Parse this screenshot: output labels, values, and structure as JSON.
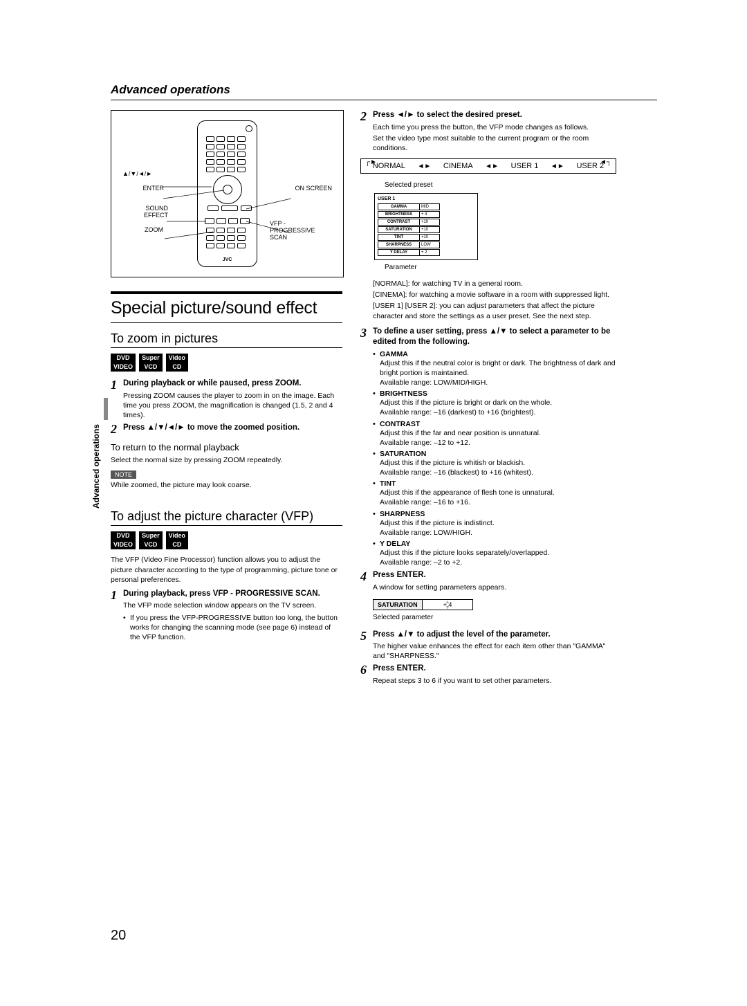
{
  "header": {
    "section_title": "Advanced operations"
  },
  "vtab": {
    "label": "Advanced operations"
  },
  "remote_labels": {
    "nav": "▲/▼/◄/►",
    "enter": "ENTER",
    "sound_effect": "SOUND EFFECT",
    "zoom": "ZOOM",
    "on_screen": "ON SCREEN",
    "vfp": "VFP - PROGRESSIVE SCAN",
    "brand": "JVC"
  },
  "left": {
    "h1": "Special picture/sound effect",
    "zoom_h2": "To zoom in pictures",
    "badges_row1": [
      "DVD",
      "Super",
      "Video"
    ],
    "badges_row2": [
      "VIDEO",
      "VCD",
      "CD"
    ],
    "zoom_step1_head": "During playback or while paused, press ZOOM.",
    "zoom_step1_text": "Pressing ZOOM causes the player to zoom in on the image. Each time you press ZOOM, the magnification is changed (1.5, 2 and 4 times).",
    "zoom_step2_head": "Press ▲/▼/◄/► to move the zoomed position.",
    "return_h3": "To return to the normal playback",
    "return_text": "Select the normal size by pressing ZOOM repeatedly.",
    "note_label": "NOTE",
    "note_text": "While zoomed, the picture may look coarse.",
    "vfp_h2": "To adjust the picture character (VFP)",
    "vfp_intro": "The VFP (Video Fine Processor) function allows you to adjust the picture character according to the type of programming, picture tone or personal preferences.",
    "vfp_step1_head": "During playback, press VFP - PROGRESSIVE SCAN.",
    "vfp_step1_text1": "The VFP mode selection window appears on the TV screen.",
    "vfp_step1_text2": "If you press the VFP-PROGRESSIVE button too long, the button works for changing the scanning mode (see page 6) instead of the VFP function."
  },
  "right": {
    "step2_head": "Press ◄/► to select the desired preset.",
    "step2_text1": "Each time you press the button, the VFP mode changes as follows.",
    "step2_text2": "Set the video type most suitable to the current program or the room conditions.",
    "flow": [
      "NORMAL",
      "CINEMA",
      "USER 1",
      "USER 2"
    ],
    "selected_label": "Selected preset",
    "preset_box_title": "USER 1",
    "preset_rows": [
      [
        "GAMMA",
        "MID"
      ],
      [
        "BRIGHTNESS",
        "+  4"
      ],
      [
        "CONTRAST",
        "+10"
      ],
      [
        "SATURATION",
        "+10"
      ],
      [
        "TINT",
        "+10"
      ],
      [
        "SHARPNESS",
        "LOW"
      ],
      [
        "Y DELAY",
        "+  2"
      ]
    ],
    "param_label": "Parameter",
    "mode_normal": "[NORMAL]: for watching TV in a general room.",
    "mode_cinema": "[CINEMA]: for watching a movie software in a room with suppressed light.",
    "mode_user": "[USER 1] [USER 2]: you can adjust parameters that affect the picture character and store the settings as a user preset. See the next step.",
    "step3_head": "To define a user setting, press ▲/▼ to select a parameter to be edited from the following.",
    "params": [
      {
        "name": "GAMMA",
        "desc": "Adjust this if the neutral color is bright or dark. The brightness of dark and bright portion is maintained.",
        "range": "Available range: LOW/MID/HIGH."
      },
      {
        "name": "BRIGHTNESS",
        "desc": "Adjust this if the picture is bright or dark on the whole.",
        "range": "Available range: –16 (darkest) to +16 (brightest)."
      },
      {
        "name": "CONTRAST",
        "desc": "Adjust this if the far and near position is unnatural.",
        "range": "Available range: –12 to +12."
      },
      {
        "name": "SATURATION",
        "desc": "Adjust this if the picture is whitish or blackish.",
        "range": "Available range: –16 (blackest) to +16 (whitest)."
      },
      {
        "name": "TINT",
        "desc": "Adjust this if the appearance of flesh tone is unnatural.",
        "range": "Available range: –16 to +16."
      },
      {
        "name": "SHARPNESS",
        "desc": "Adjust this if the picture is indistinct.",
        "range": "Available range: LOW/HIGH."
      },
      {
        "name": "Y DELAY",
        "desc": "Adjust this if the picture looks separately/overlapped.",
        "range": "Available range: –2 to +2."
      }
    ],
    "step4_head": "Press ENTER.",
    "step4_text": "A window for setting parameters appears.",
    "sat_box_l": "SATURATION",
    "sat_box_r": "+  4",
    "sel_param_label": "Selected parameter",
    "step5_head": "Press ▲/▼ to adjust the level of the parameter.",
    "step5_text": "The higher value enhances the effect for each item other than \"GAMMA\" and \"SHARPNESS.\"",
    "step6_head": "Press ENTER.",
    "step6_text": "Repeat steps 3 to 6 if you want to set other parameters."
  },
  "page_number": "20"
}
